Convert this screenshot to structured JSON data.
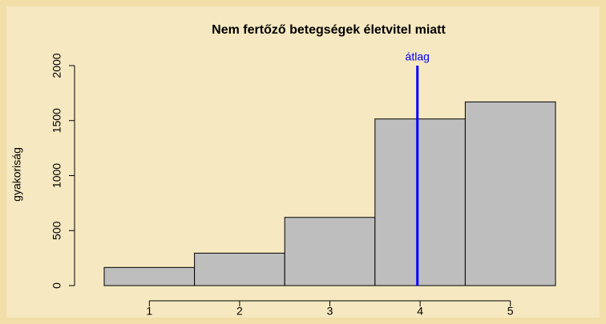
{
  "chart_data": {
    "type": "histogram",
    "title": "Nem fertőző betegségek életvitel miatt",
    "ylabel": "gyakoriság",
    "bins": [
      0.5,
      1.5,
      2.5,
      3.5,
      4.5,
      5.5
    ],
    "values": [
      165,
      295,
      620,
      1515,
      1670
    ],
    "color": "#bebebe",
    "xlim": [
      0.5,
      5.5
    ],
    "xticks": [
      1,
      2,
      3,
      4,
      5
    ],
    "ylim": [
      0,
      2000
    ],
    "yticks": [
      0,
      500,
      1000,
      1500,
      2000
    ],
    "mean_line": {
      "x": 3.97,
      "label": "átlag",
      "color": "#0000ff"
    }
  }
}
